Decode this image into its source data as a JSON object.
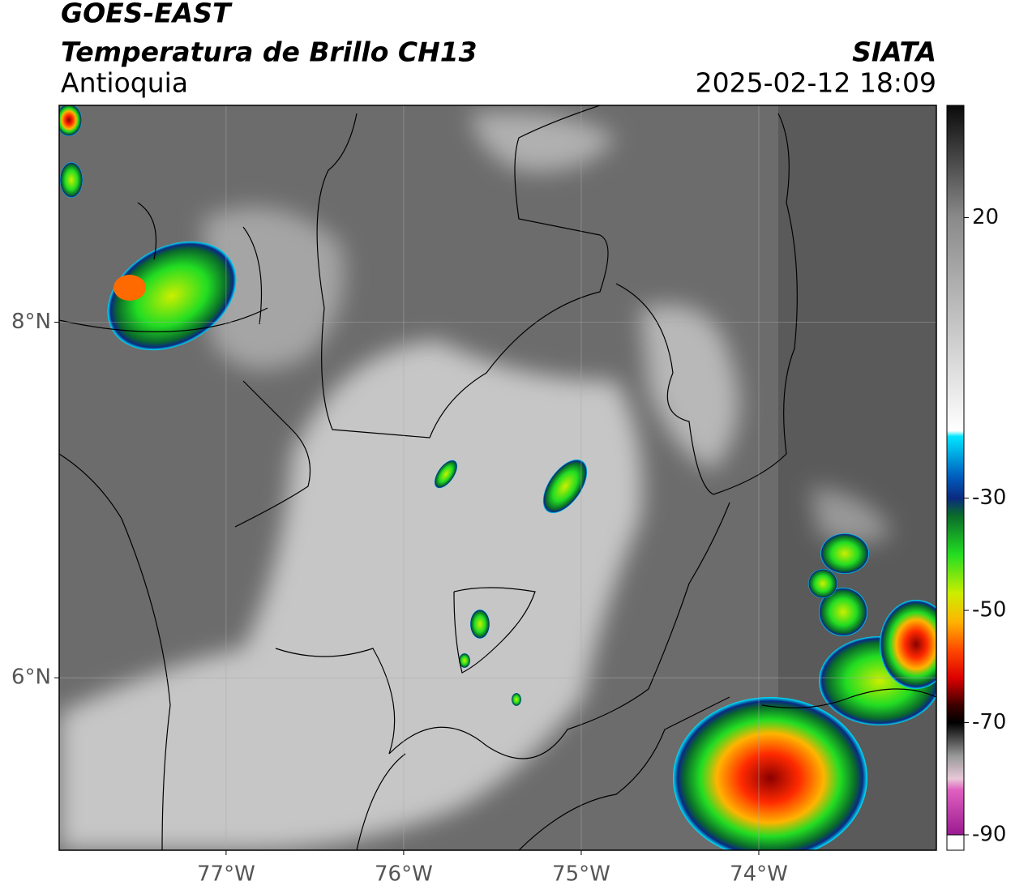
{
  "header": {
    "title": "GOES-EAST",
    "subtitle": "Temperatura de Brillo CH13",
    "region": "Antioquia",
    "source": "SIATA",
    "datetime": "2025-02-12 18:09"
  },
  "map": {
    "xlim": [
      -77.94,
      -73.0
    ],
    "ylim": [
      5.03,
      9.22
    ],
    "xticks": [
      {
        "value": -77,
        "label": "77°W"
      },
      {
        "value": -76,
        "label": "76°W"
      },
      {
        "value": -75,
        "label": "75°W"
      },
      {
        "value": -74,
        "label": "74°W"
      }
    ],
    "yticks": [
      {
        "value": 6,
        "label": "6°N"
      },
      {
        "value": 8,
        "label": "8°N"
      }
    ],
    "grid": true
  },
  "colorbar": {
    "clim": [
      -90,
      40
    ],
    "ticks": [
      20,
      -30,
      -50,
      -70,
      -90
    ],
    "under_color": "#ffffff",
    "stops": [
      {
        "value": 40,
        "color": "#0a0a0a"
      },
      {
        "value": 20,
        "color": "#8a8a8a"
      },
      {
        "value": -18,
        "color": "#ffffff"
      },
      {
        "value": -19,
        "color": "#00e5ff"
      },
      {
        "value": -26,
        "color": "#0060c0"
      },
      {
        "value": -30,
        "color": "#0a2a80"
      },
      {
        "value": -33,
        "color": "#0a6a2a"
      },
      {
        "value": -40,
        "color": "#22dd22"
      },
      {
        "value": -47,
        "color": "#ccee00"
      },
      {
        "value": -52,
        "color": "#ffb400"
      },
      {
        "value": -57,
        "color": "#ff4a00"
      },
      {
        "value": -62,
        "color": "#dd0000"
      },
      {
        "value": -67,
        "color": "#3a0000"
      },
      {
        "value": -70,
        "color": "#000000"
      },
      {
        "value": -76,
        "color": "#999999"
      },
      {
        "value": -80,
        "color": "#e8c8d8"
      },
      {
        "value": -82,
        "color": "#e060c0"
      },
      {
        "value": -90,
        "color": "#9a1a90"
      }
    ]
  }
}
